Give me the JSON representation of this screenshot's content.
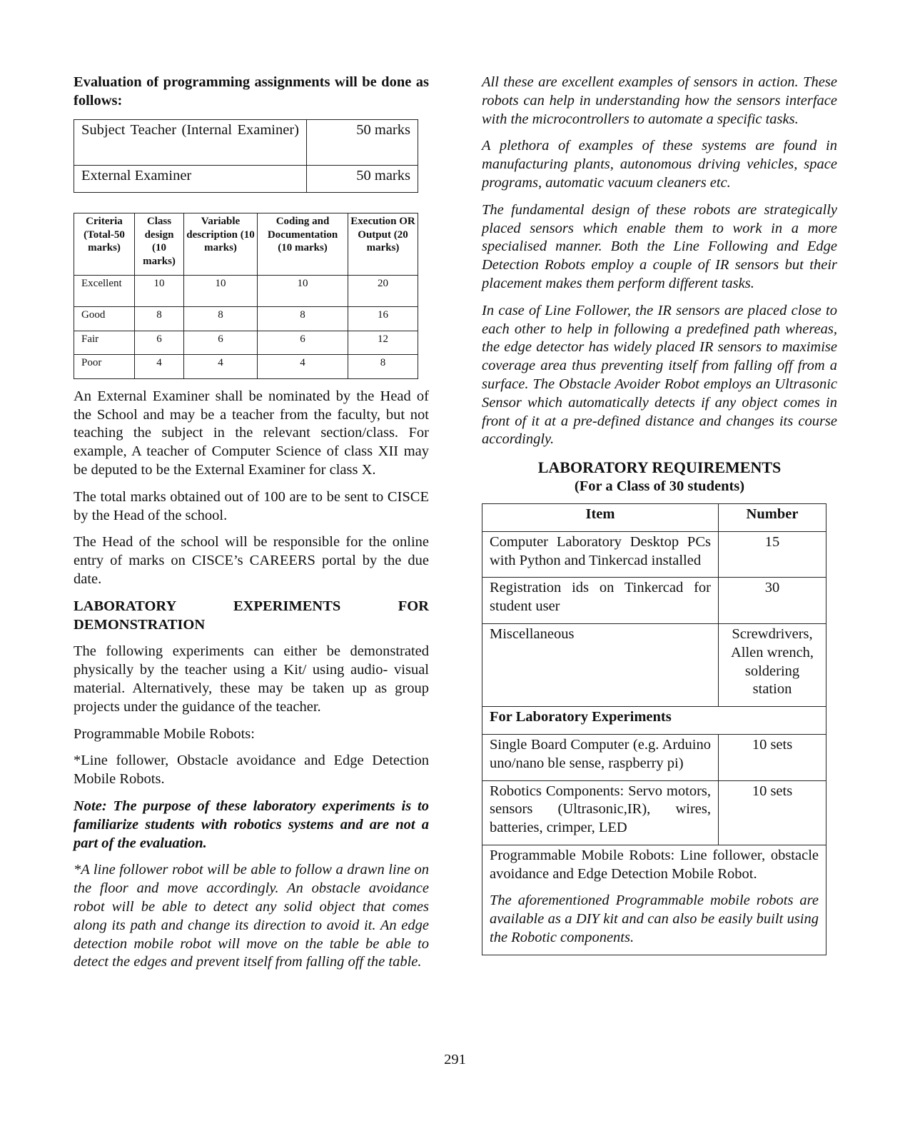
{
  "left": {
    "intro": "Evaluation of programming assignments will be done as follows:",
    "examiners": [
      {
        "role": "Subject Teacher (Internal Examiner)",
        "marks": "50 marks"
      },
      {
        "role": "External Examiner",
        "marks": "50 marks"
      }
    ],
    "criteria_table": {
      "headers": [
        "Criteria (Total-50 marks)",
        "Class design (10 marks)",
        "Variable description (10 marks)",
        "Coding and Documentation (10 marks)",
        "Execution OR Output (20 marks)"
      ],
      "rows": [
        [
          "Excellent",
          "10",
          "10",
          "10",
          "20"
        ],
        [
          "Good",
          "8",
          "8",
          "8",
          "16"
        ],
        [
          "Fair",
          "6",
          "6",
          "6",
          "12"
        ],
        [
          "Poor",
          "4",
          "4",
          "4",
          "8"
        ]
      ]
    },
    "p1": "An External Examiner shall be nominated by the Head of the School and may be a teacher from the faculty, but not teaching the subject in the relevant section/class. For example, A teacher of Computer Science of class XII may be deputed to be the External Examiner for class X.",
    "p2": "The total marks obtained out of 100 are to be sent to CISCE by the Head of the school.",
    "p3": "The Head of the school will be responsible for the online entry of marks on CISCE’s CAREERS portal by the due date.",
    "lab_heading": "LABORATORY EXPERIMENTS FOR DEMONSTRATION",
    "p4": "The following experiments can either be demonstrated physically by the teacher using a Kit/ using audio- visual material. Alternatively, these may be taken up as group projects under the guidance of the teacher.",
    "p5": "Programmable Mobile Robots:",
    "p6": "*Line follower, Obstacle avoidance and Edge Detection Mobile Robots.",
    "note": "Note: The purpose of these laboratory experiments is to familiarize students with robotics systems and are not a part of the evaluation.",
    "p7": "*A line follower robot will be able to follow a drawn line on the floor and move accordingly. An obstacle avoidance robot will be able to detect any solid object that comes along its path and change its direction to avoid it. An edge detection mobile robot will move on the table be able to detect the edges and prevent itself from falling off the table."
  },
  "right": {
    "p1": "All these are excellent examples of sensors in action. These robots can help in understanding how the sensors interface with the microcontrollers to automate a specific tasks.",
    "p2": "A plethora of examples of these systems are found in manufacturing plants, autonomous driving vehicles, space programs, automatic vacuum cleaners etc.",
    "p3": "The fundamental design of these robots are strategically placed sensors which enable them to work in a more specialised manner. Both the Line Following and Edge Detection Robots employ a couple of IR sensors but their placement makes them perform different tasks.",
    "p4": "In case of Line Follower, the IR sensors are placed close to each other to help in following a predefined path whereas, the edge detector has widely placed IR sensors to maximise coverage area thus preventing itself from falling off from a surface. The Obstacle Avoider Robot employs an Ultrasonic Sensor which automatically detects if any object comes in front of it at a pre-defined distance and changes its course accordingly.",
    "lab_req_heading": "LABORATORY REQUIREMENTS",
    "lab_req_sub": "(For a Class of 30 students)",
    "req_table": {
      "headers": [
        "Item",
        "Number"
      ],
      "rows": [
        [
          "Computer Laboratory Desktop PCs with Python and Tinkercad installed",
          "15"
        ],
        [
          "Registration ids on Tinkercad for student user",
          "30"
        ],
        [
          "Miscellaneous",
          "Screwdrivers, Allen wrench, soldering station"
        ]
      ],
      "section": "For Laboratory Experiments",
      "rows2": [
        [
          "Single Board Computer (e.g. Arduino uno/nano ble sense, raspberry pi)",
          "10 sets"
        ],
        [
          "Robotics Components: Servo motors, sensors (Ultrasonic,IR), wires, batteries, crimper, LED",
          "10 sets"
        ]
      ],
      "footer_text": "Programmable Mobile Robots: Line follower, obstacle avoidance and Edge Detection Mobile Robot.",
      "footer_note": "The aforementioned Programmable mobile robots are available as a DIY kit and can also be easily built using the Robotic components."
    }
  },
  "page_number": "291"
}
